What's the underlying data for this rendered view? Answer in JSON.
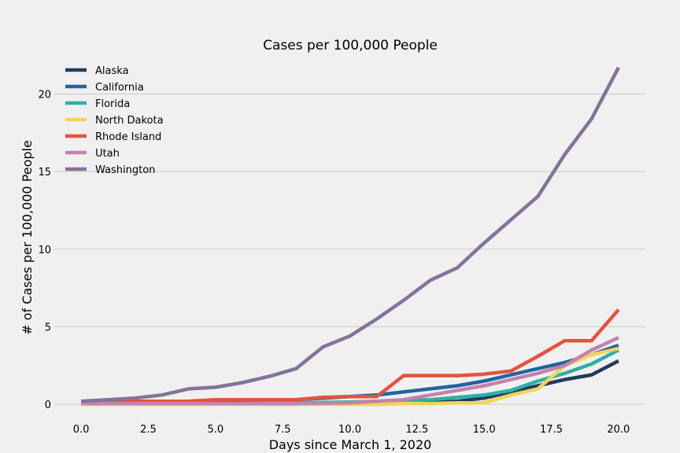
{
  "chart_data": {
    "type": "line",
    "title": "Cases per 100,000 People",
    "xlabel": "Days since March 1, 2020",
    "ylabel": "# of Cases per 100,000 People",
    "xlim": [
      -1,
      21
    ],
    "ylim": [
      -0.5,
      22
    ],
    "x_ticks": [
      "0.0",
      "2.5",
      "5.0",
      "7.5",
      "10.0",
      "12.5",
      "15.0",
      "17.5",
      "20.0"
    ],
    "y_ticks": [
      "0",
      "5",
      "10",
      "15",
      "20"
    ],
    "grid": "y",
    "legend_position": "top-left",
    "x": [
      0,
      1,
      2,
      3,
      4,
      5,
      6,
      7,
      8,
      9,
      10,
      11,
      12,
      13,
      14,
      15,
      16,
      17,
      18,
      19,
      20
    ],
    "series": [
      {
        "name": "Alaska",
        "color": "#1f3c5c",
        "values": [
          0.1,
          0.1,
          0.1,
          0.1,
          0.1,
          0.1,
          0.1,
          0.1,
          0.1,
          0.1,
          0.1,
          0.15,
          0.15,
          0.15,
          0.2,
          0.4,
          0.8,
          1.2,
          1.6,
          1.9,
          2.8
        ]
      },
      {
        "name": "California",
        "color": "#2363a1",
        "values": [
          0.05,
          0.05,
          0.05,
          0.05,
          0.05,
          0.07,
          0.1,
          0.2,
          0.3,
          0.4,
          0.5,
          0.6,
          0.8,
          1.0,
          1.2,
          1.5,
          1.9,
          2.3,
          2.7,
          3.2,
          3.8
        ]
      },
      {
        "name": "Florida",
        "color": "#2fb0a2",
        "values": [
          0.02,
          0.02,
          0.02,
          0.02,
          0.02,
          0.03,
          0.05,
          0.07,
          0.1,
          0.12,
          0.15,
          0.2,
          0.25,
          0.3,
          0.45,
          0.6,
          0.9,
          1.5,
          2.0,
          2.6,
          3.5
        ]
      },
      {
        "name": "North Dakota",
        "color": "#f2d35a",
        "values": [
          0,
          0,
          0,
          0,
          0,
          0,
          0,
          0,
          0,
          0,
          0,
          0,
          0.05,
          0.05,
          0.1,
          0.1,
          0.6,
          1.0,
          2.5,
          3.2,
          3.6
        ]
      },
      {
        "name": "Rhode Island",
        "color": "#e5533d",
        "values": [
          0.15,
          0.15,
          0.2,
          0.2,
          0.2,
          0.3,
          0.3,
          0.3,
          0.3,
          0.45,
          0.5,
          0.5,
          1.85,
          1.85,
          1.85,
          1.95,
          2.15,
          3.1,
          4.1,
          4.1,
          6.1
        ]
      },
      {
        "name": "Utah",
        "color": "#c283ad",
        "values": [
          0.05,
          0.05,
          0.05,
          0.05,
          0.05,
          0.05,
          0.05,
          0.05,
          0.05,
          0.08,
          0.1,
          0.2,
          0.3,
          0.6,
          0.9,
          1.2,
          1.6,
          2.0,
          2.5,
          3.5,
          4.3
        ]
      },
      {
        "name": "Washington",
        "color": "#857399",
        "values": [
          0.2,
          0.3,
          0.4,
          0.6,
          1.0,
          1.1,
          1.4,
          1.8,
          2.3,
          3.7,
          4.4,
          5.5,
          6.7,
          8.0,
          8.8,
          10.4,
          11.9,
          13.4,
          16.1,
          18.4,
          21.7
        ]
      }
    ]
  }
}
